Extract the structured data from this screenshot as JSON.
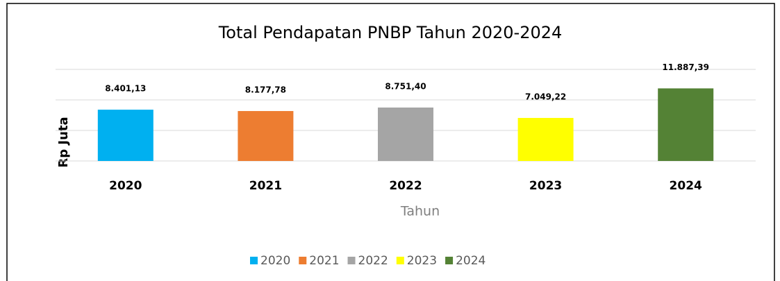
{
  "chart_data": {
    "type": "bar",
    "title": "Total Pendapatan PNBP Tahun 2020-2024",
    "x_label": "Tahun",
    "y_label": "Rp Juta",
    "categories": [
      "2020",
      "2021",
      "2022",
      "2023",
      "2024"
    ],
    "values": [
      8401.13,
      8177.78,
      8751.4,
      7049.22,
      11887.39
    ],
    "value_labels": [
      "8.401,13",
      "8.177,78",
      "8.751,40",
      "7.049,22",
      "11.887,39"
    ],
    "colors": [
      "#00b0f0",
      "#ed7d31",
      "#a5a5a5",
      "#ffff00",
      "#548235"
    ],
    "ylim": [
      0,
      15000
    ],
    "yticks": [
      0,
      5000,
      10000,
      15000
    ],
    "grid": true,
    "legend": "bottom"
  }
}
